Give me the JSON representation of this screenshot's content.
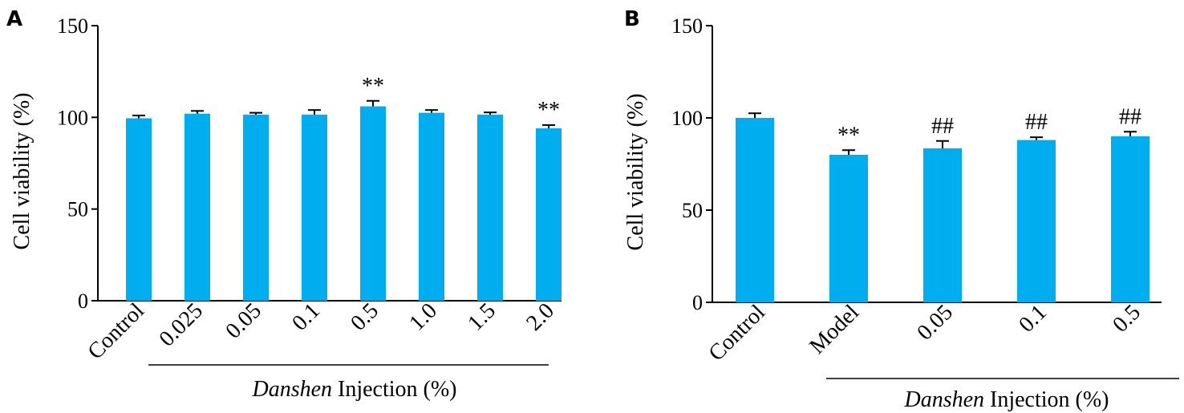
{
  "chart_data": [
    {
      "panel": "A",
      "type": "bar",
      "ylabel": "Cell viability (%)",
      "ylim": [
        0,
        150
      ],
      "yticks": [
        0,
        50,
        100,
        150
      ],
      "categories": [
        "Control",
        "0.025",
        "0.05",
        "0.1",
        "0.5",
        "1.0",
        "1.5",
        "2.0"
      ],
      "values": [
        99.5,
        102,
        101.5,
        101.5,
        106,
        102.5,
        101.5,
        94
      ],
      "errors": [
        1.5,
        1.5,
        1,
        2.5,
        3,
        1.5,
        1.2,
        1.8
      ],
      "significance": [
        "",
        "",
        "",
        "",
        "**",
        "",
        "",
        "**"
      ],
      "group": {
        "italic": "Danshen",
        "rest": " Injection (%)",
        "from": 1,
        "to": 7
      },
      "color": "#00aeef"
    },
    {
      "panel": "B",
      "type": "bar",
      "ylabel": "Cell viability (%)",
      "ylim": [
        0,
        150
      ],
      "yticks": [
        0,
        50,
        100,
        150
      ],
      "categories": [
        "Control",
        "Model",
        "0.05",
        "0.1",
        "0.5"
      ],
      "values": [
        100,
        80,
        83.5,
        88,
        90
      ],
      "errors": [
        2.5,
        2.5,
        4,
        1.5,
        2.5
      ],
      "significance": [
        "",
        "**",
        "##",
        "##",
        "##"
      ],
      "group": {
        "italic": "Danshen",
        "rest": " Injection (%)",
        "from": 1,
        "to": 4
      },
      "color": "#00aeef"
    }
  ]
}
